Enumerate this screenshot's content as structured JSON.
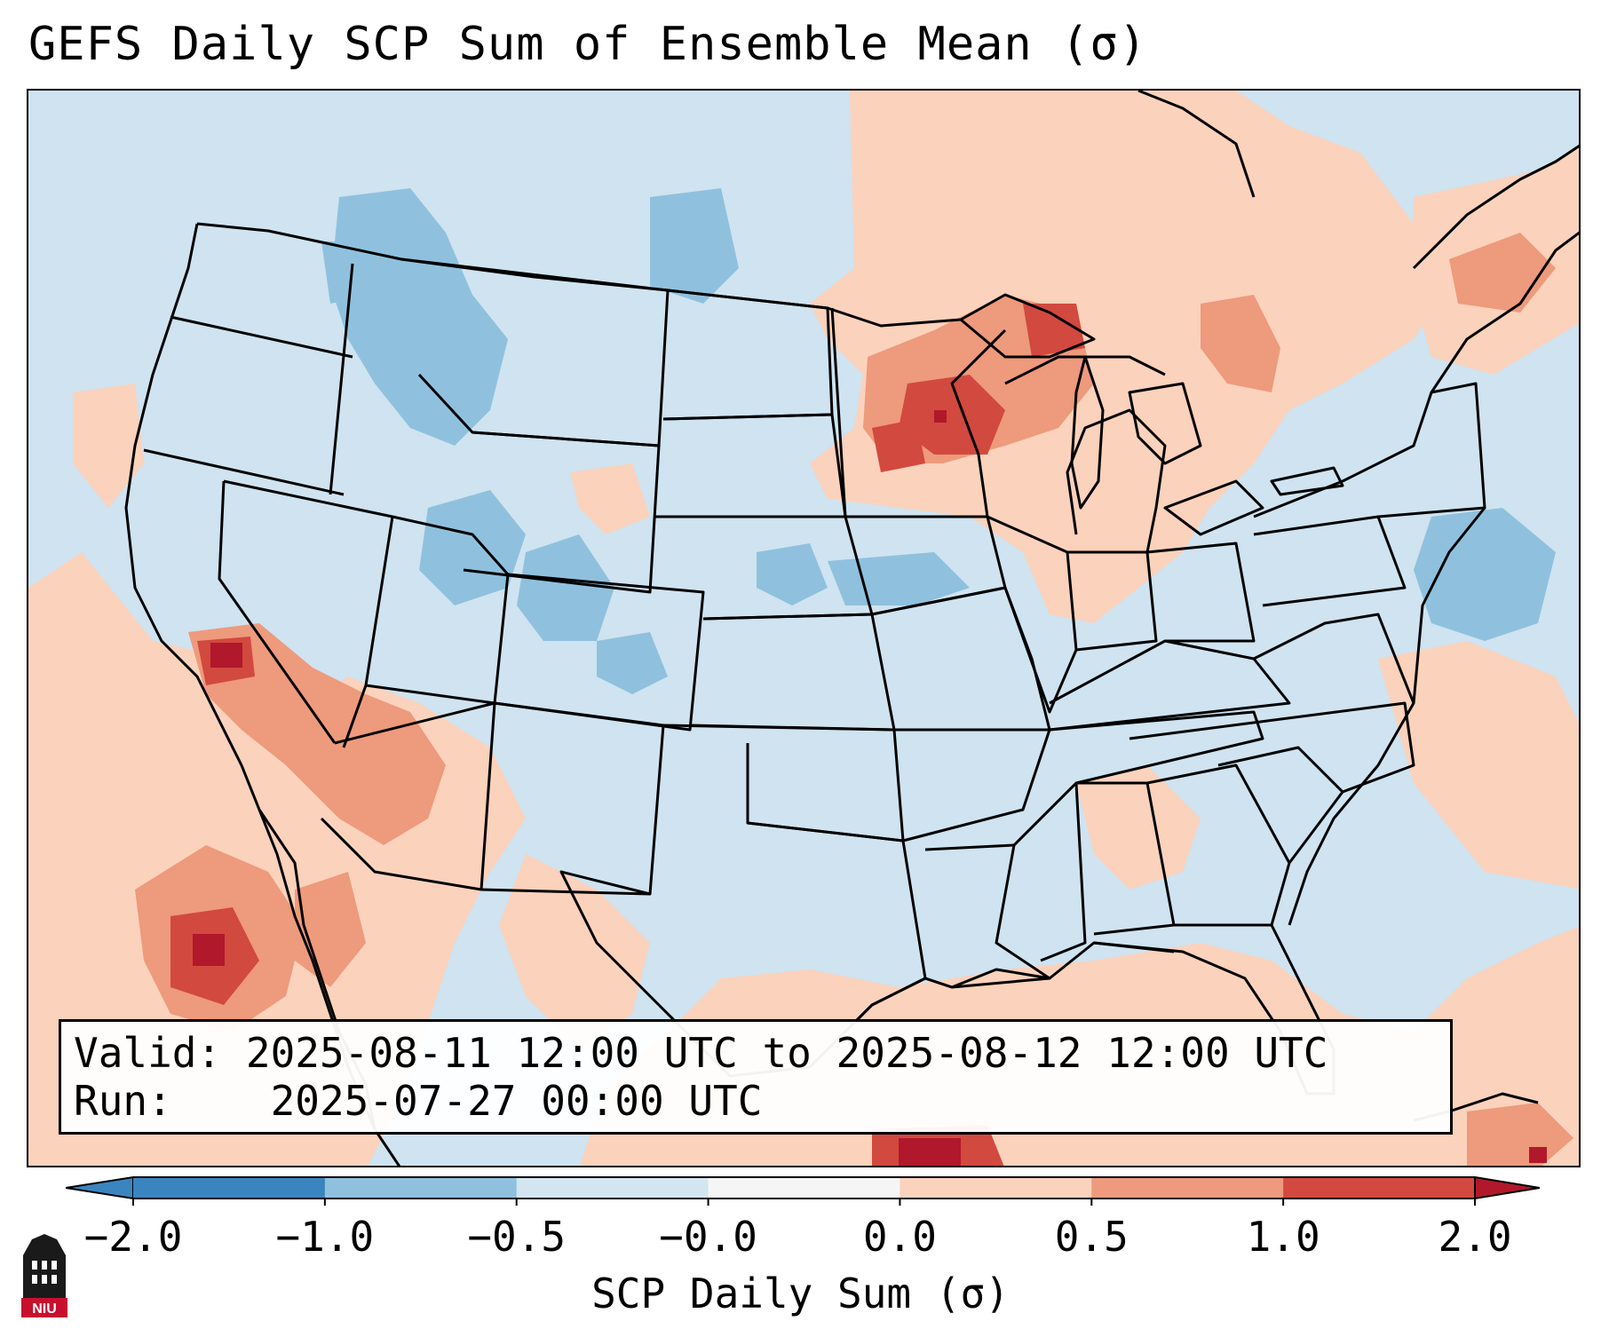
{
  "title": "GEFS Daily SCP Sum of Ensemble Mean (σ)",
  "info": {
    "valid_label": "Valid:",
    "valid_value": "2025-08-11 12:00 UTC to 2025-08-12 12:00 UTC",
    "run_label": "Run:",
    "run_value": "2025-07-27 00:00 UTC"
  },
  "colorbar": {
    "label": "SCP Daily Sum (σ)",
    "ticks": [
      "−2.0",
      "−1.0",
      "−0.5",
      "−0.0",
      "0.0",
      "0.5",
      "1.0",
      "2.0"
    ],
    "colors": [
      "#3a85bf",
      "#8fc1de",
      "#d3e5f1",
      "#f5f5f5",
      "#fbd2bc",
      "#ee9a7c",
      "#d2493f"
    ],
    "extend_low_color": "#3a85bf",
    "extend_high_color": "#b1182b"
  },
  "logo_text": "NIU",
  "legend": {
    "neg_strong": "#8fc1de",
    "neg_weak": "#cfe3f0",
    "pos_weak": "#fbd2bc",
    "pos_mid": "#ee9a7c",
    "pos_strong": "#d2493f",
    "pos_extreme": "#b1182b"
  }
}
